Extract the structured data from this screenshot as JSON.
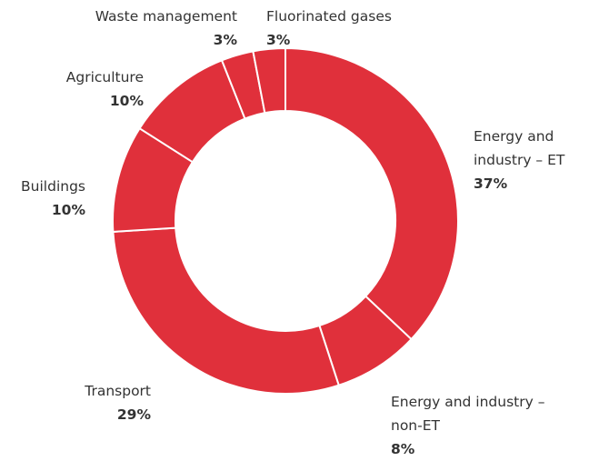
{
  "chart_data": {
    "type": "pie",
    "donut": true,
    "color": "#e0303b",
    "categories": [
      "Energy and industry – ET",
      "Energy and industry – non-ET",
      "Transport",
      "Buildings",
      "Agriculture",
      "Waste management",
      "Fluorinated gases"
    ],
    "values": [
      37,
      8,
      29,
      10,
      10,
      3,
      3
    ],
    "value_labels": [
      "37%",
      "8%",
      "29%",
      "10%",
      "10%",
      "3%",
      "3%"
    ]
  }
}
